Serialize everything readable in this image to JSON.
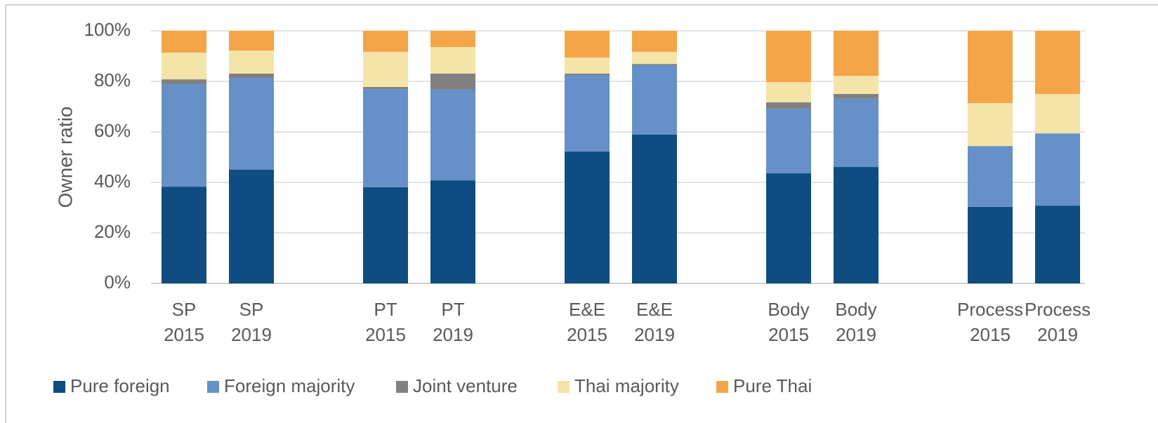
{
  "chart_data": {
    "type": "stacked_bar",
    "y_label": "Owner ratio",
    "categories": [
      "SP 2015",
      "SP 2019",
      "PT 2015",
      "PT 2019",
      "E&E 2015",
      "E&E 2019",
      "Body 2015",
      "Body 2019",
      "Process 2015",
      "Process 2019"
    ],
    "series": [
      {
        "name": "Pure foreign",
        "color": "#0e4c81",
        "values": [
          38.3,
          45.0,
          38.1,
          40.8,
          52.2,
          58.9,
          43.6,
          46.1,
          30.3,
          30.8
        ]
      },
      {
        "name": "Foreign majority",
        "color": "#6590c8",
        "values": [
          40.6,
          36.4,
          38.8,
          35.9,
          30.3,
          27.5,
          25.6,
          27.0,
          24.1,
          28.6
        ]
      },
      {
        "name": "Joint venture",
        "color": "#808080",
        "values": [
          1.9,
          1.7,
          0.9,
          6.4,
          0.6,
          0.5,
          2.5,
          1.9,
          0,
          0
        ]
      },
      {
        "name": "Thai majority",
        "color": "#f5e4a8",
        "values": [
          10.6,
          9.1,
          13.9,
          10.5,
          6.3,
          4.8,
          8.0,
          7.2,
          17.0,
          15.6
        ]
      },
      {
        "name": "Pure Thai",
        "color": "#f4a548",
        "values": [
          8.6,
          7.8,
          8.3,
          6.4,
          10.6,
          8.3,
          20.3,
          17.8,
          28.6,
          25.0
        ]
      }
    ],
    "ylim": [
      0,
      100
    ],
    "yticks": [
      {
        "value": 0,
        "label": "0%"
      },
      {
        "value": 20,
        "label": "20%"
      },
      {
        "value": 40,
        "label": "40%"
      },
      {
        "value": 60,
        "label": "60%"
      },
      {
        "value": 80,
        "label": "80%"
      },
      {
        "value": 100,
        "label": "100%"
      }
    ],
    "grid": true,
    "legend": "bottom"
  }
}
